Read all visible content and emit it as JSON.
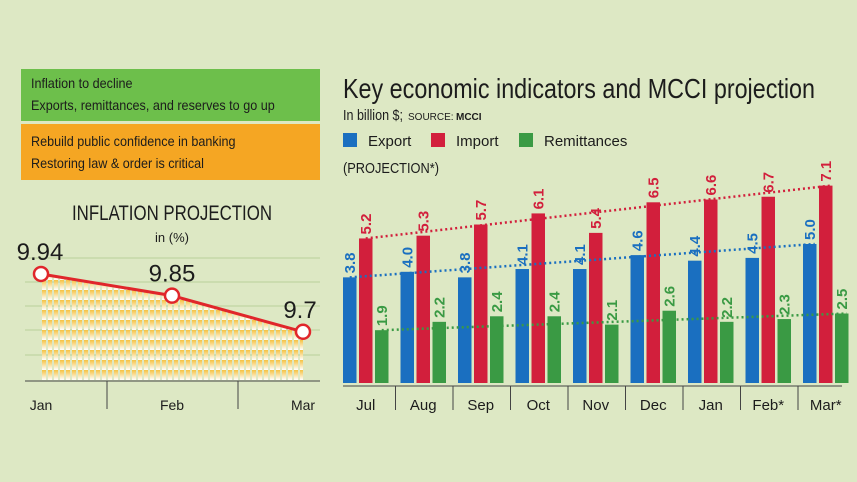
{
  "info_boxes": [
    {
      "lines": [
        "Inflation to decline",
        "Exports, remittances, and reserves to go up"
      ],
      "color": "#6dbf4b"
    },
    {
      "lines": [
        "Rebuild public confidence in banking",
        "Restoring law & order is critical"
      ],
      "color": "#f5a623"
    }
  ],
  "chart_data": [
    {
      "type": "area",
      "title": "INFLATION PROJECTION",
      "subtitle": "in (%)",
      "categories": [
        "Jan",
        "Feb",
        "Mar"
      ],
      "values": [
        9.94,
        9.85,
        9.7
      ],
      "value_labels": [
        "9.94",
        "9.85",
        "9.7"
      ],
      "line_color": "#e0262b",
      "fill_color": "#f5c242",
      "grid": true
    },
    {
      "type": "bar",
      "title": "Key economic indicators and MCCI projection",
      "subtitle": "In billion $;",
      "source_label": "SOURCE:",
      "source": "MCCI",
      "note": "(PROJECTION*)",
      "legend_position": "top-left",
      "categories": [
        "Jul",
        "Aug",
        "Sep",
        "Oct",
        "Nov",
        "Dec",
        "Jan",
        "Feb*",
        "Mar*"
      ],
      "series": [
        {
          "name": "Export",
          "color": "#1a6fc0",
          "values": [
            3.8,
            4.0,
            3.8,
            4.1,
            4.1,
            4.6,
            4.4,
            4.5,
            5.0
          ],
          "labels": [
            "3.8",
            "4.0",
            "3.8",
            "4.1",
            "4.1",
            "4.6",
            "4.4",
            "4.5",
            "5.0"
          ]
        },
        {
          "name": "Import",
          "color": "#d21f3c",
          "values": [
            5.2,
            5.3,
            5.7,
            6.1,
            5.4,
            6.5,
            6.6,
            6.7,
            7.1
          ],
          "labels": [
            "5.2",
            "5.3",
            "5.7",
            "6.1",
            "5.4",
            "6.5",
            "6.6",
            "6.7",
            "7.1"
          ]
        },
        {
          "name": "Remittances",
          "color": "#3a9a44",
          "values": [
            1.9,
            2.2,
            2.4,
            2.4,
            2.1,
            2.6,
            2.2,
            2.3,
            2.5
          ],
          "labels": [
            "1.9",
            "2.2",
            "2.4",
            "2.4",
            "2.1",
            "2.6",
            "2.2",
            "2.3",
            "2.5"
          ]
        }
      ],
      "trendlines": true
    }
  ]
}
